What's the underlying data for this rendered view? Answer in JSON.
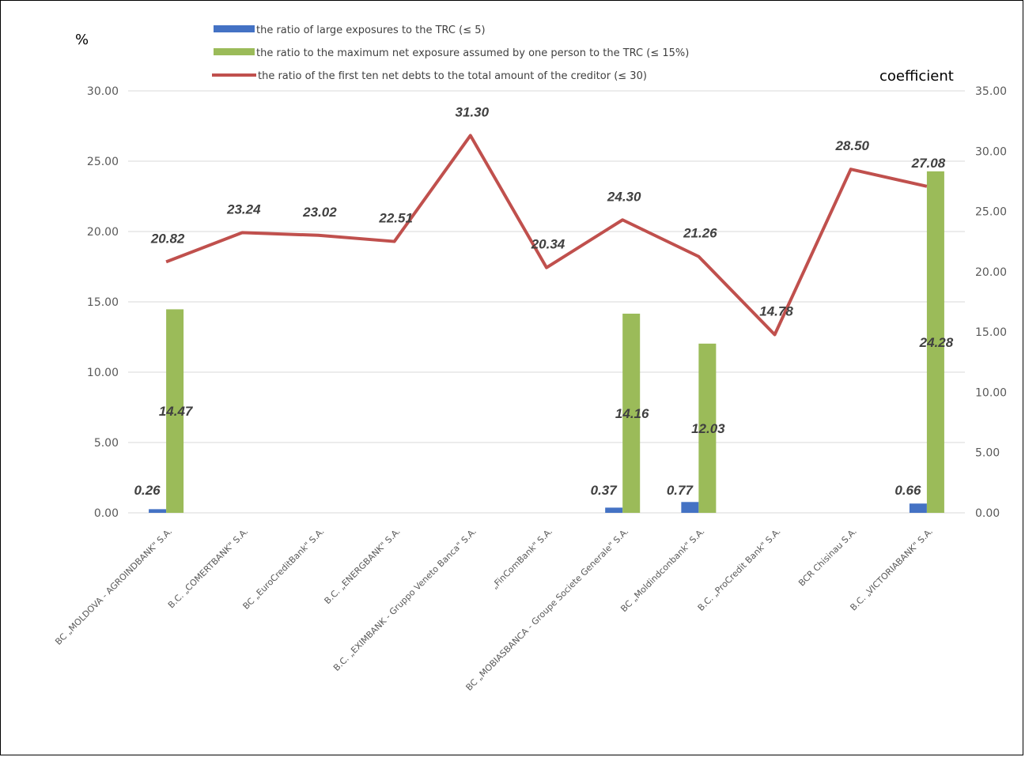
{
  "chart_data": {
    "type": "bar",
    "y_left_label": "%",
    "y_right_label": "coefficient",
    "y_left_lim": [
      0,
      30
    ],
    "y_left_ticks": [
      "0.00",
      "5.00",
      "10.00",
      "15.00",
      "20.00",
      "25.00",
      "30.00"
    ],
    "y_right_lim": [
      0,
      35
    ],
    "y_right_ticks": [
      "0.00",
      "5.00",
      "10.00",
      "15.00",
      "20.00",
      "25.00",
      "30.00",
      "35.00"
    ],
    "grid": true,
    "legend_position": "top",
    "categories": [
      "BC „MOLDOVA - AGROINDBANK\" S.A.",
      "B.C. „COMERTBANK\" S.A.",
      "BC „EuroCreditBank\" S.A.",
      "B.C. „ENERGBANK\" S.A.",
      "B.C. „EXIMBANK - Gruppo Veneto  Banca\" S.A.",
      "„FinComBank\" S.A.",
      "BC „MOBIASBANCA - Groupe Societe Generale\"  S.A.",
      "BC „Moldindconbank\" S.A.",
      "B.C. „ProCredit  Bank\" S.A.",
      "BCR Chisinau S.A.",
      "B.C. „VICTORIABANK\" S.A."
    ],
    "series": [
      {
        "name": "the ratio of large exposures to the TRC (≤ 5)",
        "kind": "bar",
        "axis": "left",
        "color": "#4472c4",
        "values": [
          0.26,
          null,
          null,
          null,
          null,
          null,
          0.37,
          0.77,
          null,
          null,
          0.66
        ],
        "labels": [
          "0.26",
          "",
          "",
          "",
          "",
          "",
          "0.37",
          "0.77",
          "",
          "",
          "0.66"
        ]
      },
      {
        "name": "the ratio to the maximum net exposure assumed by one person to the TRC (≤ 15%)",
        "kind": "bar",
        "axis": "left",
        "color": "#9bbb59",
        "values": [
          14.47,
          null,
          null,
          null,
          null,
          null,
          14.16,
          12.03,
          null,
          null,
          24.28
        ],
        "labels": [
          "14.47",
          "",
          "",
          "",
          "",
          "",
          "14.16",
          "12.03",
          "",
          "",
          "24.28"
        ]
      },
      {
        "name": "the ratio of the first ten net debts to the total amount of the creditor (≤ 30)",
        "kind": "line",
        "axis": "right",
        "color": "#c0504d",
        "values": [
          20.82,
          23.24,
          23.02,
          22.51,
          31.3,
          20.34,
          24.3,
          21.26,
          14.78,
          28.5,
          27.08
        ],
        "labels": [
          "20.82",
          "23.24",
          "23.02",
          "22.51",
          "31.30",
          "20.34",
          "24.30",
          "21.26",
          "14.78",
          "28.50",
          "27.08"
        ]
      }
    ]
  }
}
